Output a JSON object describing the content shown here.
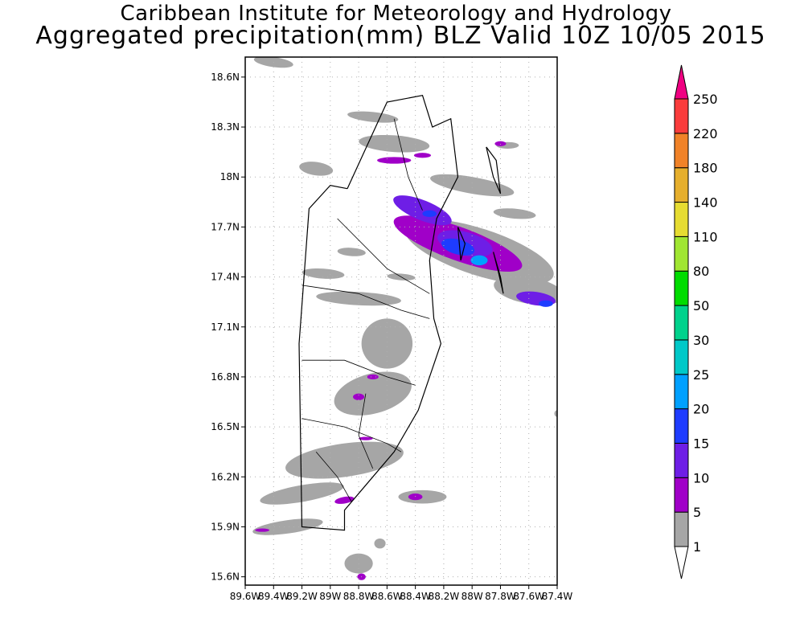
{
  "title": {
    "line1": "Caribbean Institute for Meteorology and Hydrology",
    "line2": "Aggregated precipitation(mm) BLZ Valid 10Z 10/05 2015"
  },
  "map": {
    "lat_range": [
      15.55,
      18.72
    ],
    "lon_range": [
      -89.6,
      -87.4
    ],
    "lat_ticks": [
      {
        "value": 18.6,
        "label": "18.6N"
      },
      {
        "value": 18.3,
        "label": "18.3N"
      },
      {
        "value": 18.0,
        "label": "18N"
      },
      {
        "value": 17.7,
        "label": "17.7N"
      },
      {
        "value": 17.4,
        "label": "17.4N"
      },
      {
        "value": 17.1,
        "label": "17.1N"
      },
      {
        "value": 16.8,
        "label": "16.8N"
      },
      {
        "value": 16.5,
        "label": "16.5N"
      },
      {
        "value": 16.2,
        "label": "16.2N"
      },
      {
        "value": 15.9,
        "label": "15.9N"
      },
      {
        "value": 15.6,
        "label": "15.6N"
      }
    ],
    "lon_ticks": [
      {
        "value": -89.6,
        "label": "89.6W"
      },
      {
        "value": -89.4,
        "label": "89.4W"
      },
      {
        "value": -89.2,
        "label": "89.2W"
      },
      {
        "value": -89.0,
        "label": "89W"
      },
      {
        "value": -88.8,
        "label": "88.8W"
      },
      {
        "value": -88.6,
        "label": "88.6W"
      },
      {
        "value": -88.4,
        "label": "88.4W"
      },
      {
        "value": -88.2,
        "label": "88.2W"
      },
      {
        "value": -88.0,
        "label": "88W"
      },
      {
        "value": -87.8,
        "label": "87.8W"
      },
      {
        "value": -87.6,
        "label": "87.6W"
      },
      {
        "value": -87.4,
        "label": "87.4W"
      }
    ],
    "grid": true,
    "colors": {
      "frame": "#000000",
      "grid": "#b0b0b0",
      "boundary": "#000000"
    }
  },
  "colorbar": {
    "levels": [
      {
        "label": "1",
        "color": "#a6a6a6"
      },
      {
        "label": "5",
        "color": "#a000c8"
      },
      {
        "label": "10",
        "color": "#6e1ee6"
      },
      {
        "label": "15",
        "color": "#1e3cff"
      },
      {
        "label": "20",
        "color": "#00a0ff"
      },
      {
        "label": "25",
        "color": "#00c8c8"
      },
      {
        "label": "30",
        "color": "#00d28c"
      },
      {
        "label": "50",
        "color": "#00dc00"
      },
      {
        "label": "80",
        "color": "#a0e632"
      },
      {
        "label": "110",
        "color": "#e6dc32"
      },
      {
        "label": "140",
        "color": "#e6af2d"
      },
      {
        "label": "180",
        "color": "#f08228"
      },
      {
        "label": "220",
        "color": "#fa3c3c"
      },
      {
        "label": "250",
        "color": "#f00082"
      }
    ],
    "below_color": "#ffffff"
  },
  "precip_cells": [
    {
      "lon": -89.4,
      "lat": 18.69,
      "rx": 0.14,
      "ry": 0.03,
      "level": 1,
      "rot": 8
    },
    {
      "lon": -88.7,
      "lat": 18.36,
      "rx": 0.18,
      "ry": 0.03,
      "level": 1,
      "rot": 6
    },
    {
      "lon": -88.55,
      "lat": 18.2,
      "rx": 0.25,
      "ry": 0.05,
      "level": 1,
      "rot": 4
    },
    {
      "lon": -87.75,
      "lat": 18.19,
      "rx": 0.08,
      "ry": 0.02,
      "level": 1,
      "rot": 0
    },
    {
      "lon": -88.55,
      "lat": 18.1,
      "rx": 0.12,
      "ry": 0.02,
      "level": 5,
      "rot": 0
    },
    {
      "lon": -88.35,
      "lat": 18.13,
      "rx": 0.06,
      "ry": 0.015,
      "level": 5,
      "rot": 0
    },
    {
      "lon": -87.8,
      "lat": 18.2,
      "rx": 0.04,
      "ry": 0.015,
      "level": 5,
      "rot": 0
    },
    {
      "lon": -89.1,
      "lat": 18.05,
      "rx": 0.12,
      "ry": 0.04,
      "level": 1,
      "rot": 8
    },
    {
      "lon": -88.0,
      "lat": 17.95,
      "rx": 0.3,
      "ry": 0.05,
      "level": 1,
      "rot": 10
    },
    {
      "lon": -87.7,
      "lat": 17.78,
      "rx": 0.15,
      "ry": 0.03,
      "level": 1,
      "rot": 5
    },
    {
      "lon": -87.95,
      "lat": 17.55,
      "rx": 0.55,
      "ry": 0.14,
      "level": 1,
      "rot": 18
    },
    {
      "lon": -88.1,
      "lat": 17.6,
      "rx": 0.48,
      "ry": 0.1,
      "level": 5,
      "rot": 20
    },
    {
      "lon": -88.35,
      "lat": 17.8,
      "rx": 0.22,
      "ry": 0.06,
      "level": 10,
      "rot": 22
    },
    {
      "lon": -88.3,
      "lat": 17.78,
      "rx": 0.05,
      "ry": 0.02,
      "level": 15,
      "rot": 0
    },
    {
      "lon": -88.05,
      "lat": 17.6,
      "rx": 0.2,
      "ry": 0.07,
      "level": 10,
      "rot": 15
    },
    {
      "lon": -88.1,
      "lat": 17.58,
      "rx": 0.12,
      "ry": 0.045,
      "level": 15,
      "rot": 15
    },
    {
      "lon": -87.95,
      "lat": 17.5,
      "rx": 0.06,
      "ry": 0.03,
      "level": 20,
      "rot": 0
    },
    {
      "lon": -87.6,
      "lat": 17.32,
      "rx": 0.25,
      "ry": 0.08,
      "level": 1,
      "rot": 10
    },
    {
      "lon": -87.55,
      "lat": 17.27,
      "rx": 0.14,
      "ry": 0.04,
      "level": 10,
      "rot": 8
    },
    {
      "lon": -87.48,
      "lat": 17.24,
      "rx": 0.05,
      "ry": 0.02,
      "level": 15,
      "rot": 0
    },
    {
      "lon": -88.85,
      "lat": 17.55,
      "rx": 0.1,
      "ry": 0.025,
      "level": 1,
      "rot": 4
    },
    {
      "lon": -89.05,
      "lat": 17.42,
      "rx": 0.15,
      "ry": 0.03,
      "level": 1,
      "rot": 4
    },
    {
      "lon": -88.5,
      "lat": 17.4,
      "rx": 0.1,
      "ry": 0.02,
      "level": 1,
      "rot": 4
    },
    {
      "lon": -88.8,
      "lat": 17.27,
      "rx": 0.3,
      "ry": 0.04,
      "level": 1,
      "rot": 3
    },
    {
      "lon": -88.6,
      "lat": 17.0,
      "rx": 0.18,
      "ry": 0.15,
      "level": 1,
      "rot": 0
    },
    {
      "lon": -88.7,
      "lat": 16.7,
      "rx": 0.28,
      "ry": 0.12,
      "level": 1,
      "rot": -15
    },
    {
      "lon": -88.7,
      "lat": 16.8,
      "rx": 0.04,
      "ry": 0.015,
      "level": 5,
      "rot": 0
    },
    {
      "lon": -88.8,
      "lat": 16.68,
      "rx": 0.04,
      "ry": 0.02,
      "level": 5,
      "rot": 0
    },
    {
      "lon": -88.9,
      "lat": 16.3,
      "rx": 0.42,
      "ry": 0.1,
      "level": 1,
      "rot": -8
    },
    {
      "lon": -88.75,
      "lat": 16.43,
      "rx": 0.05,
      "ry": 0.01,
      "level": 5,
      "rot": 0
    },
    {
      "lon": -89.2,
      "lat": 16.1,
      "rx": 0.3,
      "ry": 0.05,
      "level": 1,
      "rot": -10
    },
    {
      "lon": -88.9,
      "lat": 16.06,
      "rx": 0.07,
      "ry": 0.02,
      "level": 5,
      "rot": -10
    },
    {
      "lon": -88.35,
      "lat": 16.08,
      "rx": 0.17,
      "ry": 0.04,
      "level": 1,
      "rot": 0
    },
    {
      "lon": -88.4,
      "lat": 16.08,
      "rx": 0.05,
      "ry": 0.02,
      "level": 5,
      "rot": 0
    },
    {
      "lon": -89.3,
      "lat": 15.9,
      "rx": 0.25,
      "ry": 0.04,
      "level": 1,
      "rot": -8
    },
    {
      "lon": -89.48,
      "lat": 15.88,
      "rx": 0.05,
      "ry": 0.01,
      "level": 5,
      "rot": 0
    },
    {
      "lon": -88.8,
      "lat": 15.68,
      "rx": 0.1,
      "ry": 0.06,
      "level": 1,
      "rot": 0
    },
    {
      "lon": -88.78,
      "lat": 15.6,
      "rx": 0.03,
      "ry": 0.02,
      "level": 5,
      "rot": 0
    },
    {
      "lon": -88.65,
      "lat": 15.8,
      "rx": 0.04,
      "ry": 0.03,
      "level": 1,
      "rot": 0
    },
    {
      "lon": -87.4,
      "lat": 16.58,
      "rx": 0.02,
      "ry": 0.02,
      "level": 1,
      "rot": 0
    }
  ],
  "boundaries": {
    "country_outline": [
      [
        -88.88,
        17.93
      ],
      [
        -88.6,
        18.45
      ],
      [
        -88.35,
        18.49
      ],
      [
        -88.28,
        18.3
      ],
      [
        -88.15,
        18.35
      ],
      [
        -88.1,
        18.0
      ],
      [
        -88.25,
        17.75
      ],
      [
        -88.3,
        17.5
      ],
      [
        -88.27,
        17.15
      ],
      [
        -88.22,
        17.0
      ],
      [
        -88.3,
        16.8
      ],
      [
        -88.38,
        16.6
      ],
      [
        -88.55,
        16.35
      ],
      [
        -88.7,
        16.2
      ],
      [
        -88.9,
        16.0
      ],
      [
        -88.9,
        15.88
      ],
      [
        -89.2,
        15.9
      ],
      [
        -89.22,
        17.0
      ],
      [
        -89.15,
        17.81
      ],
      [
        -89.0,
        17.95
      ],
      [
        -88.88,
        17.93
      ]
    ],
    "district_lines": [
      [
        [
          -88.55,
          18.35
        ],
        [
          -88.45,
          18.0
        ],
        [
          -88.35,
          17.8
        ]
      ],
      [
        [
          -88.95,
          17.75
        ],
        [
          -88.6,
          17.45
        ],
        [
          -88.3,
          17.3
        ]
      ],
      [
        [
          -89.2,
          17.35
        ],
        [
          -88.8,
          17.3
        ],
        [
          -88.5,
          17.2
        ],
        [
          -88.3,
          17.15
        ]
      ],
      [
        [
          -89.2,
          16.9
        ],
        [
          -88.9,
          16.9
        ],
        [
          -88.6,
          16.8
        ],
        [
          -88.4,
          16.75
        ]
      ],
      [
        [
          -89.2,
          16.55
        ],
        [
          -88.9,
          16.5
        ],
        [
          -88.6,
          16.4
        ],
        [
          -88.5,
          16.35
        ]
      ],
      [
        [
          -88.75,
          16.7
        ],
        [
          -88.8,
          16.45
        ],
        [
          -88.7,
          16.25
        ]
      ],
      [
        [
          -89.1,
          16.35
        ],
        [
          -88.95,
          16.2
        ],
        [
          -88.85,
          16.05
        ]
      ]
    ],
    "cayes": [
      [
        [
          -87.9,
          18.18
        ],
        [
          -87.85,
          18.0
        ],
        [
          -87.8,
          17.9
        ],
        [
          -87.83,
          18.1
        ],
        [
          -87.9,
          18.18
        ]
      ],
      [
        [
          -87.85,
          17.55
        ],
        [
          -87.8,
          17.4
        ],
        [
          -87.78,
          17.3
        ],
        [
          -87.82,
          17.45
        ],
        [
          -87.85,
          17.55
        ]
      ],
      [
        [
          -88.1,
          17.7
        ],
        [
          -88.08,
          17.5
        ],
        [
          -88.05,
          17.6
        ],
        [
          -88.1,
          17.7
        ]
      ]
    ]
  }
}
